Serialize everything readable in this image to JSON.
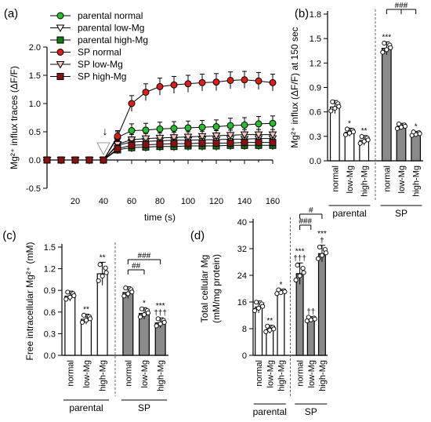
{
  "colors": {
    "parental_normal": "#22c02a",
    "parental_low": "#ffffff",
    "parental_high": "#117a11",
    "sp_normal": "#e01b1b",
    "sp_low": "#f4c2c2",
    "sp_high": "#8a1010",
    "bar_parental": "#ffffff",
    "bar_sp": "#8a8a8a",
    "axis": "#000000"
  },
  "chart_data": [
    {
      "panel": "(a)",
      "type": "line",
      "ylabel": "Mg²⁺ influx traces (ΔF/F)",
      "xlabel": "time (s)",
      "xlim": [
        0,
        160
      ],
      "ylim": [
        -0.5,
        2.0
      ],
      "xticks": [
        "20",
        "40",
        "60",
        "80",
        "100",
        "120",
        "140",
        "160"
      ],
      "yticks": [
        "-0.5",
        "0.0",
        "0.5",
        "1.0",
        "1.5",
        "2.0"
      ],
      "annotation_time": 40,
      "annotation_label": "↓",
      "x": [
        0,
        10,
        20,
        30,
        40,
        50,
        60,
        70,
        80,
        90,
        100,
        110,
        120,
        130,
        140,
        150,
        160
      ],
      "series": [
        {
          "name": "parental normal",
          "marker": "circle",
          "color_key": "parental_normal",
          "values": [
            0,
            0,
            0,
            0,
            0,
            0.4,
            0.52,
            0.53,
            0.55,
            0.56,
            0.57,
            0.58,
            0.59,
            0.61,
            0.62,
            0.64,
            0.65
          ],
          "err": [
            0,
            0,
            0,
            0,
            0,
            0.1,
            0.12,
            0.12,
            0.12,
            0.12,
            0.12,
            0.12,
            0.12,
            0.13,
            0.13,
            0.13,
            0.13
          ]
        },
        {
          "name": "parental low-Mg",
          "marker": "triangle-down",
          "color_key": "parental_low",
          "values": [
            0,
            0,
            0,
            0,
            0,
            0.26,
            0.32,
            0.33,
            0.34,
            0.35,
            0.35,
            0.36,
            0.36,
            0.37,
            0.37,
            0.38,
            0.38
          ],
          "err": [
            0,
            0,
            0,
            0,
            0,
            0.08,
            0.09,
            0.09,
            0.09,
            0.09,
            0.09,
            0.09,
            0.09,
            0.09,
            0.09,
            0.09,
            0.09
          ]
        },
        {
          "name": "parental high-Mg",
          "marker": "square",
          "color_key": "parental_high",
          "values": [
            0,
            0,
            0,
            0,
            0,
            0.18,
            0.22,
            0.23,
            0.24,
            0.24,
            0.25,
            0.25,
            0.25,
            0.26,
            0.26,
            0.26,
            0.26
          ],
          "err": [
            0,
            0,
            0,
            0,
            0,
            0.07,
            0.08,
            0.08,
            0.08,
            0.08,
            0.08,
            0.08,
            0.08,
            0.08,
            0.08,
            0.08,
            0.08
          ]
        },
        {
          "name": "SP normal",
          "marker": "circle",
          "color_key": "sp_normal",
          "values": [
            0,
            0,
            0,
            0,
            0,
            0.42,
            1.0,
            1.2,
            1.3,
            1.33,
            1.35,
            1.37,
            1.38,
            1.41,
            1.42,
            1.4,
            1.37
          ],
          "err": [
            0,
            0,
            0,
            0,
            0,
            0.1,
            0.14,
            0.15,
            0.15,
            0.15,
            0.15,
            0.15,
            0.15,
            0.15,
            0.15,
            0.15,
            0.15
          ]
        },
        {
          "name": "SP low-Mg",
          "marker": "triangle-down",
          "color_key": "sp_low",
          "values": [
            0,
            0,
            0,
            0,
            0,
            0.28,
            0.36,
            0.38,
            0.39,
            0.4,
            0.41,
            0.42,
            0.43,
            0.44,
            0.45,
            0.45,
            0.45
          ],
          "err": [
            0,
            0,
            0,
            0,
            0,
            0.08,
            0.09,
            0.09,
            0.09,
            0.09,
            0.09,
            0.09,
            0.09,
            0.09,
            0.09,
            0.09,
            0.09
          ]
        },
        {
          "name": "SP high-Mg",
          "marker": "square",
          "color_key": "sp_high",
          "values": [
            0,
            0,
            0,
            0,
            0,
            0.2,
            0.26,
            0.27,
            0.28,
            0.29,
            0.29,
            0.3,
            0.3,
            0.3,
            0.31,
            0.31,
            0.31
          ],
          "err": [
            0,
            0,
            0,
            0,
            0,
            0.07,
            0.08,
            0.08,
            0.08,
            0.08,
            0.08,
            0.08,
            0.08,
            0.08,
            0.08,
            0.08,
            0.08
          ]
        }
      ]
    },
    {
      "panel": "(b)",
      "type": "bar",
      "ylabel": "Mg²⁺ influx (ΔF/F) at 150 sec",
      "ylim": [
        0,
        1.8
      ],
      "yticks": [
        "0.0",
        "0.3",
        "0.6",
        "0.9",
        "1.2",
        "1.5",
        "1.8"
      ],
      "categories": [
        "normal",
        "low-Mg",
        "high-Mg",
        "normal",
        "low-Mg",
        "high-Mg"
      ],
      "groups": [
        "parental",
        "SP"
      ],
      "values": [
        0.66,
        0.35,
        0.25,
        1.38,
        0.42,
        0.33
      ],
      "err": [
        0.08,
        0.05,
        0.06,
        0.08,
        0.04,
        0.03
      ],
      "marks": [
        "",
        "*",
        "**",
        "***",
        "",
        "*"
      ],
      "brackets": [
        {
          "from": 3,
          "to": [
            4,
            5
          ],
          "label": "###"
        }
      ]
    },
    {
      "panel": "(c)",
      "type": "bar",
      "ylabel": "Free intracellular Mg²⁺ (mM)",
      "ylim": [
        0,
        1.5
      ],
      "yticks": [
        "0.0",
        "0.3",
        "0.6",
        "0.9",
        "1.2",
        "1.5"
      ],
      "categories": [
        "normal",
        "low-Mg",
        "high-Mg",
        "normal",
        "low-Mg",
        "high-Mg"
      ],
      "groups": [
        "parental",
        "SP"
      ],
      "values": [
        0.82,
        0.5,
        1.13,
        0.87,
        0.58,
        0.45
      ],
      "err": [
        0.07,
        0.07,
        0.16,
        0.08,
        0.08,
        0.07
      ],
      "marks": [
        "",
        "**",
        "**",
        "",
        "*",
        "***\n†††"
      ],
      "brackets": [
        {
          "from": 3,
          "to": [
            4
          ],
          "label": "##"
        },
        {
          "from": 3,
          "to": [
            5
          ],
          "label": "###"
        }
      ]
    },
    {
      "panel": "(d)",
      "type": "bar",
      "ylabel": "Total cellular Mg\n(mM/mg protein)",
      "ylim": [
        0,
        40
      ],
      "yticks": [
        "0",
        "8",
        "16",
        "24",
        "32",
        "40"
      ],
      "categories": [
        "normal",
        "low-Mg",
        "high-Mg",
        "normal",
        "low-Mg",
        "high-Mg"
      ],
      "groups": [
        "parental",
        "SP"
      ],
      "values": [
        14.5,
        7.8,
        19.0,
        24.5,
        10.8,
        30.5
      ],
      "err": [
        1.8,
        1.2,
        0.8,
        3.2,
        0.8,
        2.5
      ],
      "marks": [
        "",
        "**",
        "*",
        "***\n†††",
        "††",
        "***\n†"
      ],
      "brackets": [
        {
          "from": 3,
          "to": [
            4
          ],
          "label": "###"
        },
        {
          "from": 3,
          "to": [
            5
          ],
          "label": "#"
        }
      ]
    }
  ]
}
